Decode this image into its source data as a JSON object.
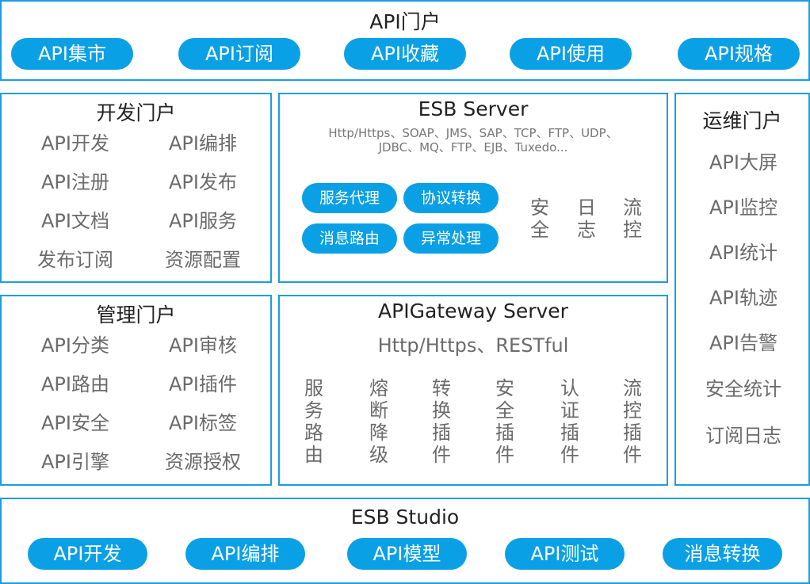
{
  "api_portal": {
    "title": "API门户",
    "items": [
      "API集市",
      "API订阅",
      "API收藏",
      "API使用",
      "API规格"
    ]
  },
  "dev_portal": {
    "title": "开发门户",
    "items": [
      "API开发",
      "API编排",
      "API注册",
      "API发布",
      "API文档",
      "API服务",
      "发布订阅",
      "资源配置"
    ]
  },
  "mgmt_portal": {
    "title": "管理门户",
    "items": [
      "API分类",
      "API审核",
      "API路由",
      "API插件",
      "API安全",
      "API标签",
      "API引擎",
      "资源授权"
    ]
  },
  "esb_server": {
    "title": "ESB Server",
    "protocols_line1": "Http/Https、SOAP、JMS、SAP、TCP、FTP、UDP、",
    "protocols_line2": "JDBC、MQ、FTP、EJB、Tuxedo...",
    "buttons": [
      "服务代理",
      "协议转换",
      "消息路由",
      "异常处理"
    ],
    "features": [
      "安全",
      "日志",
      "流控"
    ]
  },
  "gateway": {
    "title": "APIGateway Server",
    "protocols": "Http/Https、RESTful",
    "features": [
      "服务路由",
      "熔断降级",
      "转换插件",
      "安全插件",
      "认证插件",
      "流控插件"
    ]
  },
  "ops_portal": {
    "title": "运维门户",
    "items": [
      "API大屏",
      "API监控",
      "API统计",
      "API轨迹",
      "API告警",
      "安全统计",
      "订阅日志"
    ]
  },
  "studio": {
    "title": "ESB Studio",
    "items": [
      "API开发",
      "API编排",
      "API模型",
      "API测试",
      "消息转换"
    ]
  },
  "colors": {
    "accent": "#0aa0e6",
    "border": "#1a9ee0"
  }
}
